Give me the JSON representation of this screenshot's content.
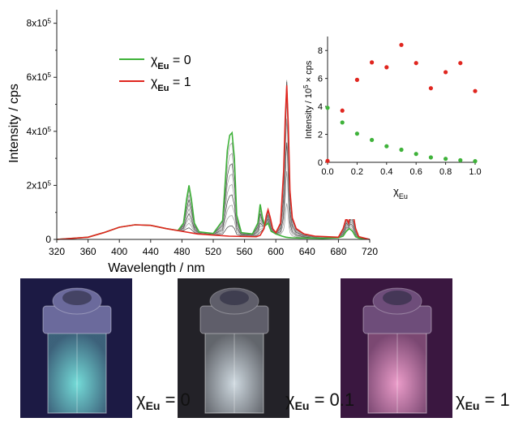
{
  "chart_data": [
    {
      "type": "line",
      "xlabel": "Wavelength / nm",
      "ylabel": "Intensity / cps",
      "xlim": [
        320,
        720
      ],
      "ylim": [
        0,
        850000
      ],
      "x_ticks": [
        "320",
        "360",
        "400",
        "440",
        "480",
        "520",
        "560",
        "600",
        "640",
        "680",
        "720"
      ],
      "y_ticks": [
        {
          "label": "0",
          "value": 0
        },
        {
          "label": "2x10",
          "sup": "5",
          "value": 200000
        },
        {
          "label": "4x10",
          "sup": "5",
          "value": 400000
        },
        {
          "label": "6x10",
          "sup": "5",
          "value": 600000
        },
        {
          "label": "8x10",
          "sup": "5",
          "value": 800000
        }
      ],
      "legend": {
        "placement": "upper-left",
        "entries": [
          {
            "chi": "χ",
            "sub": "Eu",
            "text": " = 0",
            "color": "#3fb23a"
          },
          {
            "chi": "χ",
            "sub": "Eu",
            "text": " = 1",
            "color": "#e0261f"
          }
        ]
      },
      "series": [
        {
          "name": "χEu = 0",
          "color": "#3fb23a",
          "x": [
            320,
            360,
            380,
            400,
            420,
            440,
            460,
            475,
            482,
            486,
            489,
            492,
            496,
            502,
            520,
            532,
            538,
            541,
            544,
            547,
            550,
            556,
            570,
            577,
            580,
            583,
            586,
            590,
            594,
            600,
            608,
            613,
            616,
            620,
            630,
            640,
            660,
            680,
            686,
            690,
            694,
            698,
            702,
            706,
            720
          ],
          "y": [
            0,
            8000,
            25000,
            45000,
            54000,
            52000,
            40000,
            33000,
            60000,
            150000,
            200000,
            150000,
            60000,
            28000,
            22000,
            70000,
            330000,
            385000,
            395000,
            300000,
            90000,
            25000,
            20000,
            60000,
            130000,
            80000,
            50000,
            60000,
            30000,
            20000,
            12000,
            8000,
            7000,
            6000,
            5000,
            5000,
            4000,
            6000,
            12000,
            30000,
            40000,
            30000,
            10000,
            5000,
            0
          ]
        },
        {
          "name": "χEu = 1",
          "color": "#e0261f",
          "x": [
            320,
            360,
            380,
            400,
            420,
            440,
            460,
            480,
            500,
            540,
            575,
            580,
            585,
            588,
            590,
            593,
            596,
            600,
            606,
            610,
            612,
            614,
            616,
            618,
            621,
            626,
            636,
            650,
            680,
            686,
            690,
            693,
            696,
            699,
            702,
            706,
            720
          ],
          "y": [
            0,
            8000,
            25000,
            45000,
            54000,
            52000,
            40000,
            30000,
            20000,
            12000,
            10000,
            15000,
            40000,
            90000,
            110000,
            80000,
            40000,
            25000,
            60000,
            250000,
            450000,
            570000,
            420000,
            180000,
            80000,
            40000,
            20000,
            12000,
            8000,
            40000,
            80000,
            60000,
            110000,
            90000,
            40000,
            10000,
            0
          ]
        }
      ]
    },
    {
      "type": "scatter",
      "xlabel": "χEu",
      "ylabel": "Intensity / 10^5 × cps",
      "xlim": [
        0,
        1
      ],
      "ylim": [
        0,
        9
      ],
      "x_ticks": [
        "0.0",
        "0.2",
        "0.4",
        "0.6",
        "0.8",
        "1.0"
      ],
      "y_ticks": [
        "0",
        "2",
        "4",
        "6",
        "8"
      ],
      "series": [
        {
          "color": "#3fb23a",
          "x": [
            0.0,
            0.1,
            0.2,
            0.3,
            0.4,
            0.5,
            0.6,
            0.7,
            0.8,
            0.9,
            1.0
          ],
          "y": [
            3.9,
            2.85,
            2.05,
            1.6,
            1.15,
            0.9,
            0.6,
            0.35,
            0.25,
            0.15,
            0.08
          ]
        },
        {
          "color": "#e0261f",
          "x": [
            0.0,
            0.1,
            0.2,
            0.3,
            0.4,
            0.5,
            0.6,
            0.7,
            0.8,
            0.9,
            1.0
          ],
          "y": [
            0.1,
            3.7,
            5.9,
            7.15,
            6.8,
            8.4,
            7.1,
            5.3,
            6.45,
            7.1,
            5.1
          ]
        }
      ]
    }
  ],
  "photos": [
    {
      "chi": "χ",
      "sub": "Eu",
      "value": " = 0",
      "glow": "#79e6e0",
      "bg": "#1c1a44",
      "cap": "#6b6a9c"
    },
    {
      "chi": "χ",
      "sub": "Eu",
      "value": " = 0.1",
      "glow": "#d8e3ea",
      "bg": "#232228",
      "cap": "#5f5e6a"
    },
    {
      "chi": "χ",
      "sub": "Eu",
      "value": " = 1",
      "glow": "#f4a3d0",
      "bg": "#3a1740",
      "cap": "#6e4d7a"
    }
  ]
}
